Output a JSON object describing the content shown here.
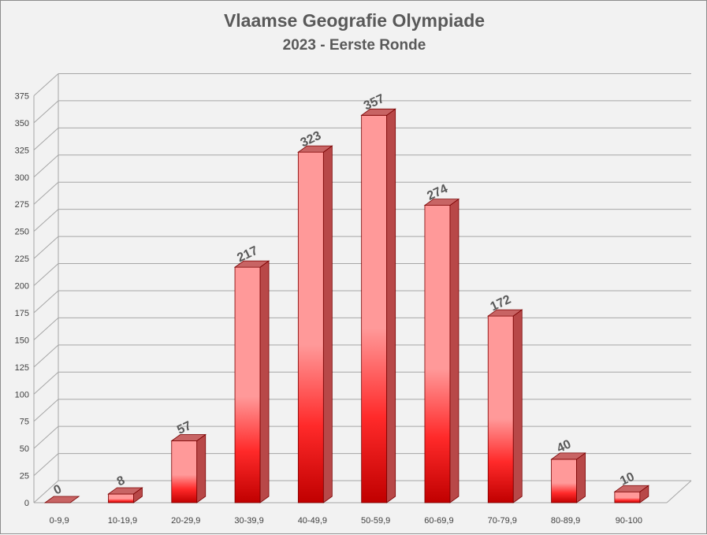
{
  "chart_data": {
    "type": "bar",
    "title": "Vlaamse Geografie Olympiade",
    "subtitle": "2023 - Eerste Ronde",
    "categories": [
      "0-9,9",
      "10-19,9",
      "20-29,9",
      "30-39,9",
      "40-49,9",
      "50-59,9",
      "60-69,9",
      "70-79,9",
      "80-89,9",
      "90-100"
    ],
    "values": [
      0,
      8,
      57,
      217,
      323,
      357,
      274,
      172,
      40,
      10
    ],
    "data_labels": [
      "0",
      "8",
      "57",
      "217",
      "323",
      "357",
      "274",
      "172",
      "40",
      "10"
    ],
    "y_ticks": [
      "0",
      "25",
      "50",
      "75",
      "100",
      "125",
      "150",
      "175",
      "200",
      "225",
      "250",
      "275",
      "300",
      "325",
      "350",
      "375"
    ],
    "ylim": [
      0,
      375
    ],
    "grid": true,
    "three_d": true,
    "colors": {
      "bar_top": "#ff9999",
      "bar_mid": "#ff2a2a",
      "bar_bottom": "#c00000",
      "bar_side": "#b84848",
      "bar_cap": "#c86464",
      "gridline": "#a6a6a6",
      "frame": "#8c8c8c",
      "background": "#f2f2f2"
    }
  }
}
